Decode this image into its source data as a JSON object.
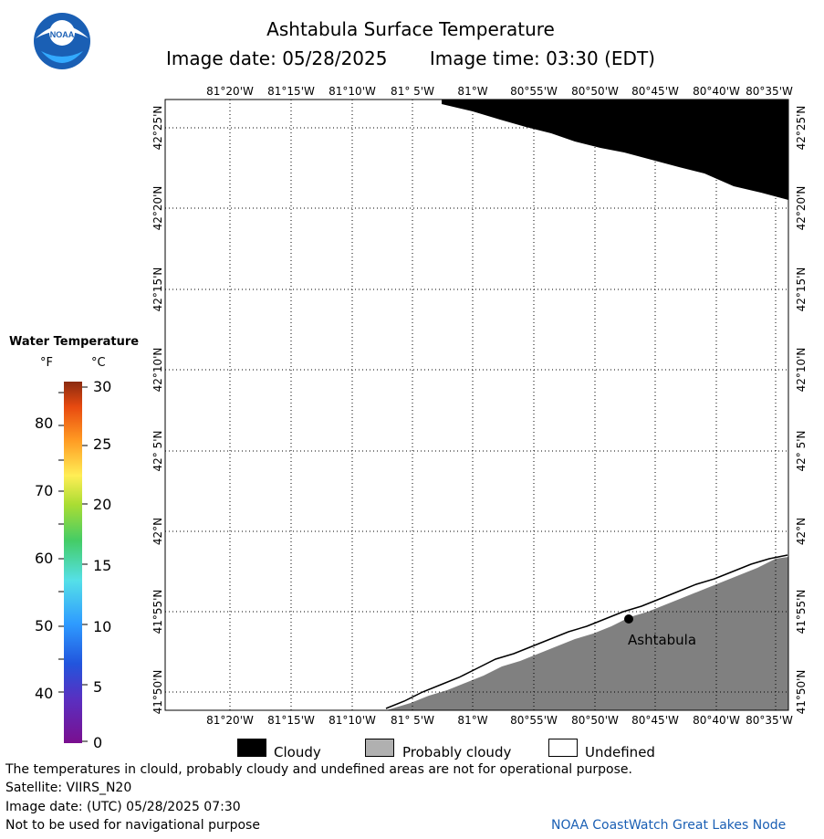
{
  "header": {
    "title": "Ashtabula Surface Temperature",
    "image_date": "Image date: 05/28/2025",
    "image_time": "Image time: 03:30 (EDT)"
  },
  "logo": {
    "text": "NOAA",
    "colors": {
      "outer": "#1a5fb4",
      "inner": "#ffffff",
      "accent": "#33aaff"
    }
  },
  "map": {
    "lon_labels": [
      "81°20'W",
      "81°15'W",
      "81°10'W",
      "81° 5'W",
      "81°W",
      "80°55'W",
      "80°50'W",
      "80°45'W",
      "80°40'W",
      "80°35'W"
    ],
    "lat_labels": [
      "42°25'N",
      "42°20'N",
      "42°15'N",
      "42°10'N",
      "42° 5'N",
      "42°N",
      "41°55'N",
      "41°50'N"
    ],
    "city_label": "Ashtabula",
    "colors": {
      "cloud": "#000000",
      "land": "#808080",
      "undefined": "#ffffff",
      "grid": "#000000"
    }
  },
  "legend": {
    "title": "Water Temperature",
    "unit_f": "°F",
    "unit_c": "°C",
    "f_ticks": [
      "80",
      "70",
      "60",
      "50",
      "40"
    ],
    "c_ticks": [
      "30",
      "25",
      "20",
      "15",
      "10",
      "5",
      "0"
    ]
  },
  "key": {
    "cloudy": "Cloudy",
    "probably_cloudy": "Probably cloudy",
    "undefined": "Undefined",
    "colors": {
      "cloudy": "#000000",
      "probably_cloudy": "#b0b0b0",
      "undefined": "#ffffff"
    }
  },
  "footer": {
    "note": "The temperatures in clould, probably cloudy and undefined areas are not for operational purpose.",
    "satellite": "Satellite: VIIRS_N20",
    "utc_date": "Image date: (UTC) 05/28/2025  07:30",
    "nav_note": "Not to be used for navigational purpose",
    "credit": "NOAA CoastWatch Great Lakes Node",
    "credit_color": "#1a5fb4"
  }
}
